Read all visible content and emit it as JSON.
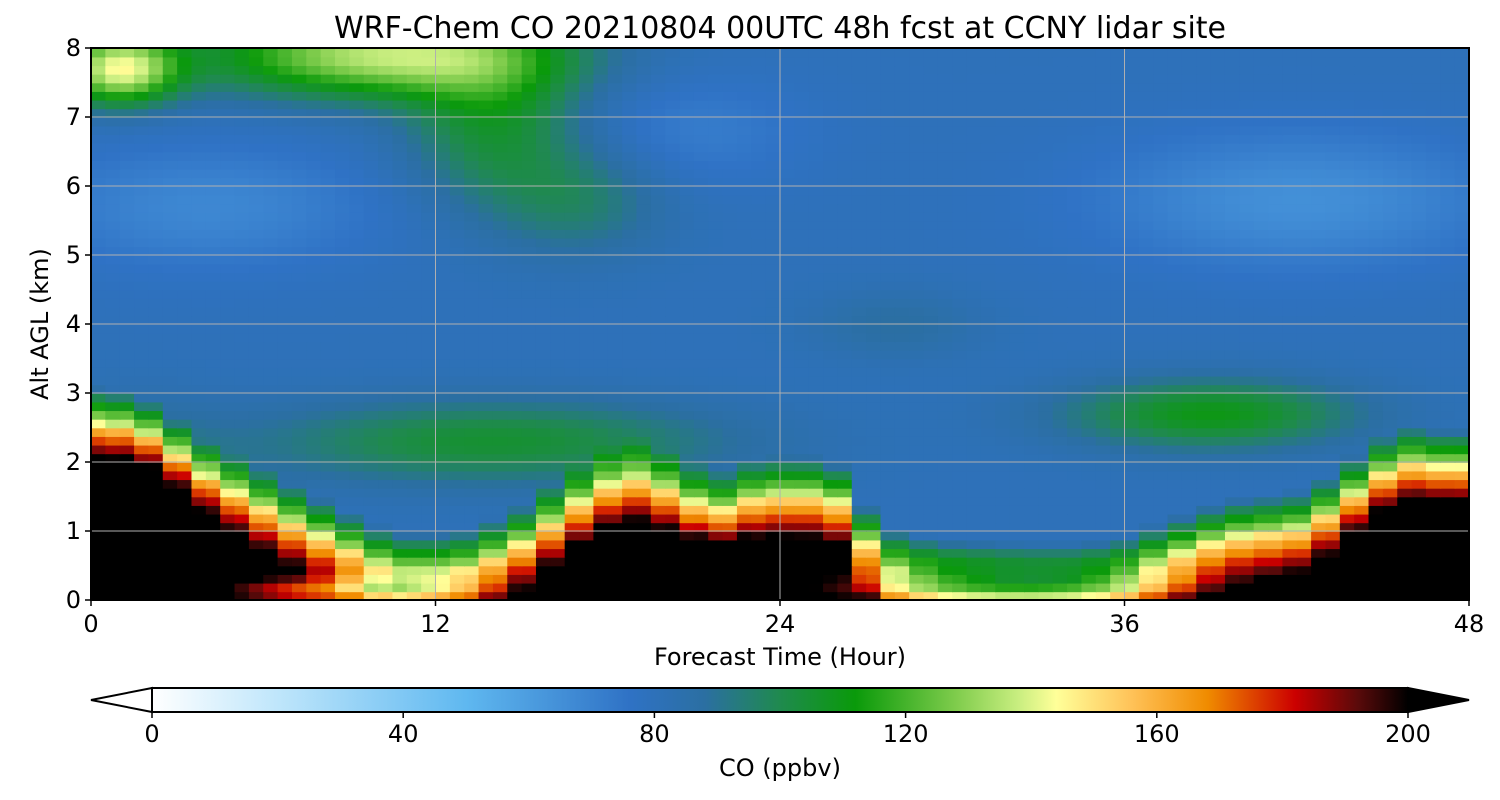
{
  "chart_data": {
    "type": "heatmap",
    "title": "WRF-Chem CO  20210804 00UTC 48h fcst at CCNY lidar site",
    "xlabel": "Forecast Time (Hour)",
    "ylabel": "Alt AGL (km)",
    "xlim": [
      0,
      48
    ],
    "ylim": [
      0,
      8
    ],
    "xticks": [
      0,
      12,
      24,
      36,
      48
    ],
    "yticks": [
      0,
      1,
      2,
      3,
      4,
      5,
      6,
      7,
      8
    ],
    "grid": true,
    "colorbar": {
      "label": "CO  (ppbv)",
      "range": [
        0,
        200
      ],
      "ticks": [
        0,
        40,
        80,
        120,
        160,
        200
      ],
      "extend": "both",
      "orientation": "horizontal",
      "placement": "bottom"
    },
    "x": [
      0,
      1,
      2,
      3,
      4,
      5,
      6,
      7,
      8,
      9,
      10,
      11,
      12,
      13,
      14,
      15,
      16,
      17,
      18,
      19,
      20,
      21,
      22,
      23,
      24,
      25,
      26,
      27,
      28,
      29,
      30,
      31,
      32,
      33,
      34,
      35,
      36,
      37,
      38,
      39,
      40,
      41,
      42,
      43,
      44,
      45,
      46,
      47,
      48
    ],
    "y": [
      0,
      0.25,
      0.5,
      0.75,
      1,
      1.25,
      1.5,
      1.75,
      2,
      2.25,
      2.5,
      2.75,
      3,
      3.5,
      4,
      4.5,
      5,
      5.5,
      6,
      6.5,
      7,
      7.5,
      8
    ]
  }
}
